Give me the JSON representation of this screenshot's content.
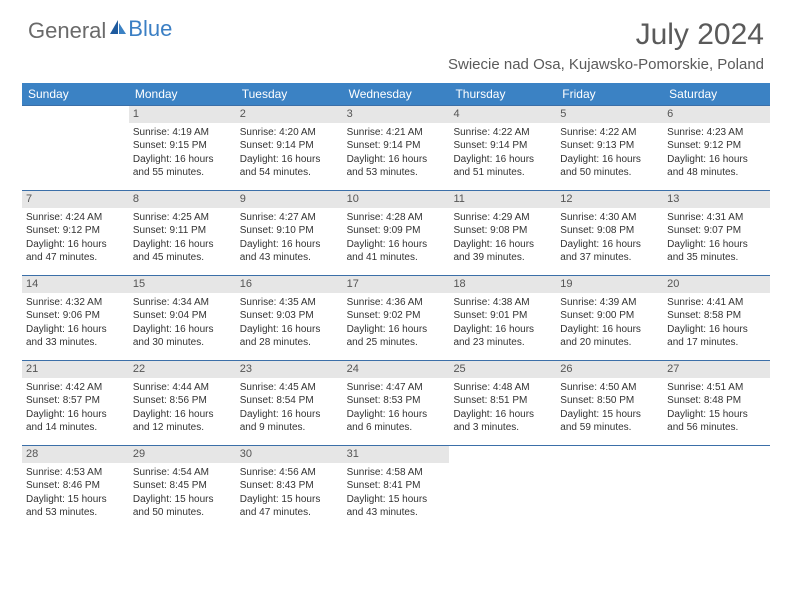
{
  "logo": {
    "part1": "General",
    "part2": "Blue"
  },
  "title": "July 2024",
  "location": "Swiecie nad Osa, Kujawsko-Pomorskie, Poland",
  "header_bg": "#3b82c4",
  "header_text": "#ffffff",
  "divider_color": "#3b6fa8",
  "daynum_bg": "#e6e6e6",
  "body_text": "#333333",
  "title_color": "#5a5a5a",
  "font_size_title": 30,
  "font_size_location": 15,
  "font_size_weekday": 12,
  "font_size_daynum": 11,
  "font_size_body": 10,
  "weekdays": [
    "Sunday",
    "Monday",
    "Tuesday",
    "Wednesday",
    "Thursday",
    "Friday",
    "Saturday"
  ],
  "weeks": [
    [
      {
        "num": "",
        "lines": []
      },
      {
        "num": "1",
        "lines": [
          "Sunrise: 4:19 AM",
          "Sunset: 9:15 PM",
          "Daylight: 16 hours",
          "and 55 minutes."
        ]
      },
      {
        "num": "2",
        "lines": [
          "Sunrise: 4:20 AM",
          "Sunset: 9:14 PM",
          "Daylight: 16 hours",
          "and 54 minutes."
        ]
      },
      {
        "num": "3",
        "lines": [
          "Sunrise: 4:21 AM",
          "Sunset: 9:14 PM",
          "Daylight: 16 hours",
          "and 53 minutes."
        ]
      },
      {
        "num": "4",
        "lines": [
          "Sunrise: 4:22 AM",
          "Sunset: 9:14 PM",
          "Daylight: 16 hours",
          "and 51 minutes."
        ]
      },
      {
        "num": "5",
        "lines": [
          "Sunrise: 4:22 AM",
          "Sunset: 9:13 PM",
          "Daylight: 16 hours",
          "and 50 minutes."
        ]
      },
      {
        "num": "6",
        "lines": [
          "Sunrise: 4:23 AM",
          "Sunset: 9:12 PM",
          "Daylight: 16 hours",
          "and 48 minutes."
        ]
      }
    ],
    [
      {
        "num": "7",
        "lines": [
          "Sunrise: 4:24 AM",
          "Sunset: 9:12 PM",
          "Daylight: 16 hours",
          "and 47 minutes."
        ]
      },
      {
        "num": "8",
        "lines": [
          "Sunrise: 4:25 AM",
          "Sunset: 9:11 PM",
          "Daylight: 16 hours",
          "and 45 minutes."
        ]
      },
      {
        "num": "9",
        "lines": [
          "Sunrise: 4:27 AM",
          "Sunset: 9:10 PM",
          "Daylight: 16 hours",
          "and 43 minutes."
        ]
      },
      {
        "num": "10",
        "lines": [
          "Sunrise: 4:28 AM",
          "Sunset: 9:09 PM",
          "Daylight: 16 hours",
          "and 41 minutes."
        ]
      },
      {
        "num": "11",
        "lines": [
          "Sunrise: 4:29 AM",
          "Sunset: 9:08 PM",
          "Daylight: 16 hours",
          "and 39 minutes."
        ]
      },
      {
        "num": "12",
        "lines": [
          "Sunrise: 4:30 AM",
          "Sunset: 9:08 PM",
          "Daylight: 16 hours",
          "and 37 minutes."
        ]
      },
      {
        "num": "13",
        "lines": [
          "Sunrise: 4:31 AM",
          "Sunset: 9:07 PM",
          "Daylight: 16 hours",
          "and 35 minutes."
        ]
      }
    ],
    [
      {
        "num": "14",
        "lines": [
          "Sunrise: 4:32 AM",
          "Sunset: 9:06 PM",
          "Daylight: 16 hours",
          "and 33 minutes."
        ]
      },
      {
        "num": "15",
        "lines": [
          "Sunrise: 4:34 AM",
          "Sunset: 9:04 PM",
          "Daylight: 16 hours",
          "and 30 minutes."
        ]
      },
      {
        "num": "16",
        "lines": [
          "Sunrise: 4:35 AM",
          "Sunset: 9:03 PM",
          "Daylight: 16 hours",
          "and 28 minutes."
        ]
      },
      {
        "num": "17",
        "lines": [
          "Sunrise: 4:36 AM",
          "Sunset: 9:02 PM",
          "Daylight: 16 hours",
          "and 25 minutes."
        ]
      },
      {
        "num": "18",
        "lines": [
          "Sunrise: 4:38 AM",
          "Sunset: 9:01 PM",
          "Daylight: 16 hours",
          "and 23 minutes."
        ]
      },
      {
        "num": "19",
        "lines": [
          "Sunrise: 4:39 AM",
          "Sunset: 9:00 PM",
          "Daylight: 16 hours",
          "and 20 minutes."
        ]
      },
      {
        "num": "20",
        "lines": [
          "Sunrise: 4:41 AM",
          "Sunset: 8:58 PM",
          "Daylight: 16 hours",
          "and 17 minutes."
        ]
      }
    ],
    [
      {
        "num": "21",
        "lines": [
          "Sunrise: 4:42 AM",
          "Sunset: 8:57 PM",
          "Daylight: 16 hours",
          "and 14 minutes."
        ]
      },
      {
        "num": "22",
        "lines": [
          "Sunrise: 4:44 AM",
          "Sunset: 8:56 PM",
          "Daylight: 16 hours",
          "and 12 minutes."
        ]
      },
      {
        "num": "23",
        "lines": [
          "Sunrise: 4:45 AM",
          "Sunset: 8:54 PM",
          "Daylight: 16 hours",
          "and 9 minutes."
        ]
      },
      {
        "num": "24",
        "lines": [
          "Sunrise: 4:47 AM",
          "Sunset: 8:53 PM",
          "Daylight: 16 hours",
          "and 6 minutes."
        ]
      },
      {
        "num": "25",
        "lines": [
          "Sunrise: 4:48 AM",
          "Sunset: 8:51 PM",
          "Daylight: 16 hours",
          "and 3 minutes."
        ]
      },
      {
        "num": "26",
        "lines": [
          "Sunrise: 4:50 AM",
          "Sunset: 8:50 PM",
          "Daylight: 15 hours",
          "and 59 minutes."
        ]
      },
      {
        "num": "27",
        "lines": [
          "Sunrise: 4:51 AM",
          "Sunset: 8:48 PM",
          "Daylight: 15 hours",
          "and 56 minutes."
        ]
      }
    ],
    [
      {
        "num": "28",
        "lines": [
          "Sunrise: 4:53 AM",
          "Sunset: 8:46 PM",
          "Daylight: 15 hours",
          "and 53 minutes."
        ]
      },
      {
        "num": "29",
        "lines": [
          "Sunrise: 4:54 AM",
          "Sunset: 8:45 PM",
          "Daylight: 15 hours",
          "and 50 minutes."
        ]
      },
      {
        "num": "30",
        "lines": [
          "Sunrise: 4:56 AM",
          "Sunset: 8:43 PM",
          "Daylight: 15 hours",
          "and 47 minutes."
        ]
      },
      {
        "num": "31",
        "lines": [
          "Sunrise: 4:58 AM",
          "Sunset: 8:41 PM",
          "Daylight: 15 hours",
          "and 43 minutes."
        ]
      },
      {
        "num": "",
        "lines": []
      },
      {
        "num": "",
        "lines": []
      },
      {
        "num": "",
        "lines": []
      }
    ]
  ]
}
